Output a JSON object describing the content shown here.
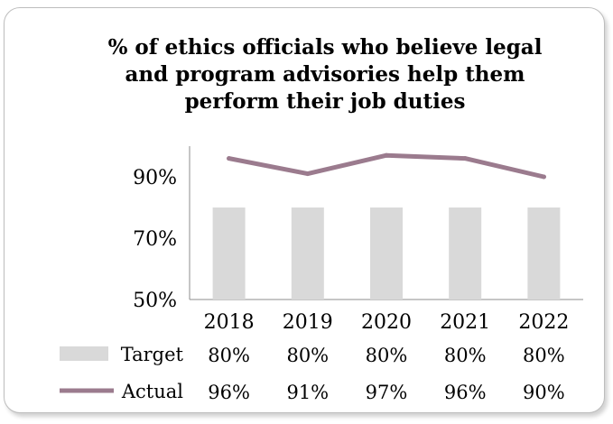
{
  "chart_data": {
    "type": "line",
    "title": "% of ethics officials who believe legal and program advisories help them perform their job duties",
    "categories": [
      "2018",
      "2019",
      "2020",
      "2021",
      "2022"
    ],
    "series": [
      {
        "name": "Target",
        "type": "bar",
        "values": [
          80,
          80,
          80,
          80,
          80
        ],
        "labels": [
          "80%",
          "80%",
          "80%",
          "80%",
          "80%"
        ],
        "color": "#d9d9d9"
      },
      {
        "name": "Actual",
        "type": "line",
        "values": [
          96,
          91,
          97,
          96,
          90
        ],
        "labels": [
          "96%",
          "91%",
          "97%",
          "96%",
          "90%"
        ],
        "color": "#9b7b8e"
      }
    ],
    "ylim": [
      50,
      100
    ],
    "yticks": [
      50,
      70,
      90
    ],
    "ytick_labels": [
      "50%",
      "70%",
      "90%"
    ],
    "xlabel": "",
    "ylabel": "",
    "grid": false,
    "legend": "data-table"
  }
}
